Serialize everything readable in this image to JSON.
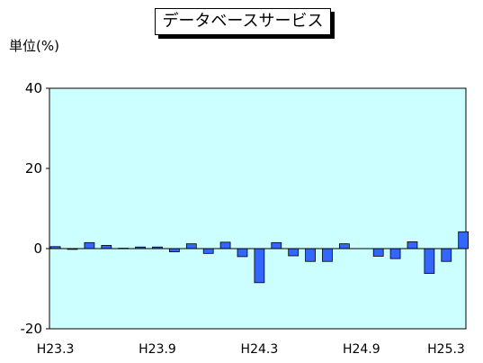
{
  "chart_data": {
    "type": "bar",
    "title": "データベースサービス",
    "ylabel": "単位(%)",
    "ylim": [
      -20,
      40
    ],
    "yticks": [
      -20,
      0,
      20,
      40
    ],
    "xtick_labels": [
      "H23.3",
      "H23.9",
      "H24.3",
      "H24.9",
      "H25.3"
    ],
    "xtick_indices": [
      0,
      6,
      12,
      18,
      24
    ],
    "categories": [
      "H23.3",
      "H23.4",
      "H23.5",
      "H23.6",
      "H23.7",
      "H23.8",
      "H23.9",
      "H23.10",
      "H23.11",
      "H23.12",
      "H24.1",
      "H24.2",
      "H24.3",
      "H24.4",
      "H24.5",
      "H24.6",
      "H24.7",
      "H24.8",
      "H24.9",
      "H24.10",
      "H24.11",
      "H24.12",
      "H25.1",
      "H25.2",
      "H25.3"
    ],
    "values": [
      0.5,
      -0.2,
      1.5,
      0.8,
      0.1,
      0.4,
      0.4,
      -0.8,
      1.2,
      -1.2,
      1.6,
      -2.0,
      -8.5,
      1.5,
      -1.8,
      -3.2,
      -3.2,
      1.2,
      0.0,
      -1.9,
      -2.5,
      1.7,
      -6.2,
      -3.2,
      4.2
    ],
    "grid": false,
    "colors": {
      "bar": "#3366ff",
      "plot_bg": "#ccffff",
      "axis": "#000000"
    }
  }
}
